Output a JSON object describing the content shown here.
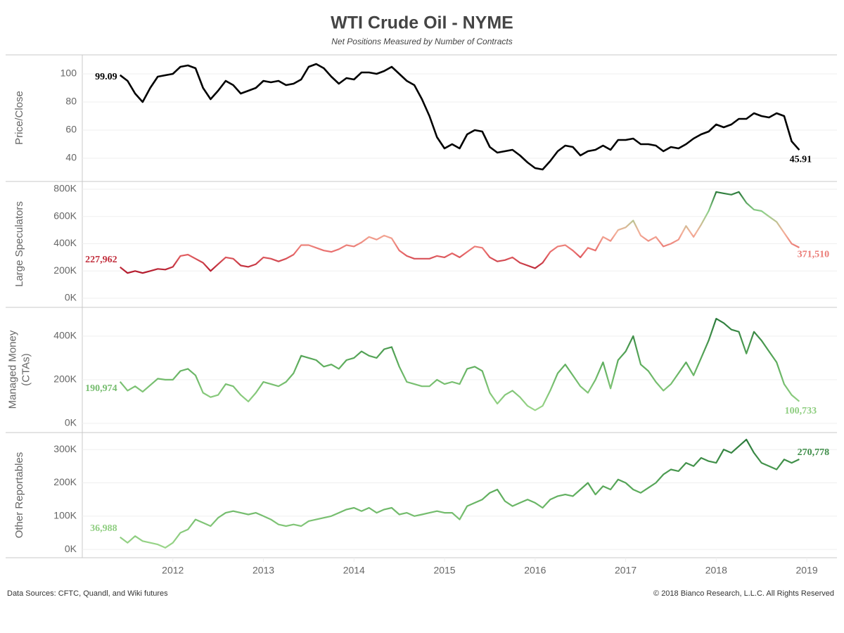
{
  "title": "WTI Crude Oil - NYME",
  "subtitle": "Net Positions Measured by Number of Contracts",
  "sources": "Data Sources: CFTC, Quandl, and Wiki futures",
  "copyright": "© 2018 Bianco Research, L.L.C. All Rights Reserved",
  "grid": true,
  "xlim": [
    "2011-01",
    "2019-05"
  ],
  "xticks": [
    2012,
    2013,
    2014,
    2015,
    2016,
    2017,
    2018,
    2019
  ],
  "x": [
    "2011-06",
    "2011-07",
    "2011-08",
    "2011-09",
    "2011-10",
    "2011-11",
    "2011-12",
    "2012-01",
    "2012-02",
    "2012-03",
    "2012-04",
    "2012-05",
    "2012-06",
    "2012-07",
    "2012-08",
    "2012-09",
    "2012-10",
    "2012-11",
    "2012-12",
    "2013-01",
    "2013-02",
    "2013-03",
    "2013-04",
    "2013-05",
    "2013-06",
    "2013-07",
    "2013-08",
    "2013-09",
    "2013-10",
    "2013-11",
    "2013-12",
    "2014-01",
    "2014-02",
    "2014-03",
    "2014-04",
    "2014-05",
    "2014-06",
    "2014-07",
    "2014-08",
    "2014-09",
    "2014-10",
    "2014-11",
    "2014-12",
    "2015-01",
    "2015-02",
    "2015-03",
    "2015-04",
    "2015-05",
    "2015-06",
    "2015-07",
    "2015-08",
    "2015-09",
    "2015-10",
    "2015-11",
    "2015-12",
    "2016-01",
    "2016-02",
    "2016-03",
    "2016-04",
    "2016-05",
    "2016-06",
    "2016-07",
    "2016-08",
    "2016-09",
    "2016-10",
    "2016-11",
    "2016-12",
    "2017-01",
    "2017-02",
    "2017-03",
    "2017-04",
    "2017-05",
    "2017-06",
    "2017-07",
    "2017-08",
    "2017-09",
    "2017-10",
    "2017-11",
    "2017-12",
    "2018-01",
    "2018-02",
    "2018-03",
    "2018-04",
    "2018-05",
    "2018-06",
    "2018-07",
    "2018-08",
    "2018-09",
    "2018-10",
    "2018-11",
    "2018-12"
  ],
  "chart_data": [
    {
      "type": "line",
      "ylabel": "Price/Close",
      "colors": [
        "#000000"
      ],
      "ylim": [
        24,
        113.5
      ],
      "yticks": [
        40,
        60,
        80,
        100
      ],
      "values": [
        99.09,
        95,
        86,
        80,
        90,
        98,
        99,
        100,
        105,
        106,
        104,
        90,
        82,
        88,
        95,
        92,
        86,
        88,
        90,
        95,
        94,
        95,
        92,
        93,
        96,
        105,
        107,
        104,
        98,
        93,
        97,
        96,
        101,
        101,
        100,
        102,
        105,
        100,
        95,
        92,
        82,
        70,
        55,
        47,
        50,
        47,
        57,
        60,
        59,
        48,
        44,
        45,
        46,
        42,
        37,
        33,
        32,
        38,
        45,
        49,
        48,
        42,
        45,
        46,
        49,
        46,
        53,
        53,
        54,
        50,
        50,
        49,
        45,
        48,
        47,
        50,
        54,
        57,
        59,
        64,
        62,
        64,
        68,
        68,
        72,
        70,
        69,
        72,
        70,
        52,
        45.91
      ],
      "value_labels": [
        "99.09",
        null,
        null,
        null,
        null,
        null,
        null,
        null,
        null,
        null,
        null,
        null,
        null,
        null,
        null,
        null,
        null,
        null,
        null,
        null,
        null,
        null,
        null,
        null,
        null,
        null,
        null,
        null,
        null,
        null,
        null,
        null,
        null,
        null,
        null,
        null,
        null,
        null,
        null,
        null,
        null,
        null,
        null,
        null,
        null,
        null,
        null,
        null,
        null,
        null,
        null,
        null,
        null,
        null,
        null,
        null,
        null,
        null,
        null,
        null,
        null,
        null,
        null,
        null,
        null,
        null,
        null,
        null,
        null,
        null,
        null,
        null,
        null,
        null,
        null,
        null,
        null,
        null,
        null,
        null,
        null,
        null,
        null,
        null,
        null,
        null,
        null,
        null,
        null,
        null,
        "45.91"
      ]
    },
    {
      "type": "line",
      "ylabel": "Large Speculators",
      "colors": [
        "#b2182b",
        "#e8696a",
        "#f4b09a",
        "#8fd18a",
        "#2b7a3b"
      ],
      "ylim": [
        -62000,
        857000
      ],
      "yticks": [
        {
          "value": 0,
          "label": "0K"
        },
        {
          "value": 200000,
          "label": "200K"
        },
        {
          "value": 400000,
          "label": "400K"
        },
        {
          "value": 600000,
          "label": "600K"
        },
        {
          "value": 800000,
          "label": "800K"
        }
      ],
      "values": [
        227962,
        185000,
        200000,
        185000,
        200000,
        215000,
        210000,
        230000,
        310000,
        320000,
        290000,
        260000,
        200000,
        250000,
        300000,
        290000,
        240000,
        230000,
        250000,
        300000,
        290000,
        270000,
        290000,
        320000,
        390000,
        390000,
        370000,
        350000,
        340000,
        360000,
        390000,
        380000,
        410000,
        450000,
        430000,
        460000,
        440000,
        350000,
        310000,
        290000,
        290000,
        290000,
        310000,
        300000,
        330000,
        300000,
        340000,
        380000,
        370000,
        300000,
        270000,
        280000,
        300000,
        260000,
        240000,
        220000,
        260000,
        340000,
        380000,
        390000,
        350000,
        300000,
        370000,
        350000,
        450000,
        420000,
        500000,
        520000,
        570000,
        460000,
        420000,
        450000,
        380000,
        400000,
        430000,
        530000,
        450000,
        540000,
        640000,
        780000,
        770000,
        760000,
        780000,
        700000,
        650000,
        640000,
        600000,
        560000,
        480000,
        400000,
        371510
      ],
      "value_labels": [
        "227,962",
        null,
        null,
        null,
        null,
        null,
        null,
        null,
        null,
        null,
        null,
        null,
        null,
        null,
        null,
        null,
        null,
        null,
        null,
        null,
        null,
        null,
        null,
        null,
        null,
        null,
        null,
        null,
        null,
        null,
        null,
        null,
        null,
        null,
        null,
        null,
        null,
        null,
        null,
        null,
        null,
        null,
        null,
        null,
        null,
        null,
        null,
        null,
        null,
        null,
        null,
        null,
        null,
        null,
        null,
        null,
        null,
        null,
        null,
        null,
        null,
        null,
        null,
        null,
        null,
        null,
        null,
        null,
        null,
        null,
        null,
        null,
        null,
        null,
        null,
        null,
        null,
        null,
        null,
        null,
        null,
        null,
        null,
        null,
        null,
        null,
        null,
        null,
        null,
        null,
        "371,510"
      ]
    },
    {
      "type": "line",
      "ylabel": [
        "Managed Money",
        "(CTAs)"
      ],
      "colors": [
        "#9bd68a",
        "#5fae5e",
        "#2b7a3b"
      ],
      "ylim": [
        -39000,
        532000
      ],
      "yticks": [
        {
          "value": 0,
          "label": "0K"
        },
        {
          "value": 200000,
          "label": "200K"
        },
        {
          "value": 400000,
          "label": "400K"
        }
      ],
      "values": [
        190974,
        150000,
        170000,
        145000,
        175000,
        205000,
        200000,
        200000,
        240000,
        250000,
        220000,
        140000,
        120000,
        130000,
        180000,
        170000,
        130000,
        100000,
        140000,
        190000,
        180000,
        170000,
        190000,
        230000,
        310000,
        300000,
        290000,
        260000,
        270000,
        250000,
        290000,
        300000,
        330000,
        310000,
        300000,
        340000,
        350000,
        260000,
        190000,
        180000,
        170000,
        170000,
        200000,
        180000,
        190000,
        180000,
        250000,
        260000,
        240000,
        140000,
        90000,
        130000,
        150000,
        120000,
        80000,
        60000,
        80000,
        150000,
        230000,
        270000,
        220000,
        170000,
        140000,
        200000,
        280000,
        160000,
        290000,
        330000,
        400000,
        270000,
        240000,
        190000,
        150000,
        180000,
        230000,
        280000,
        220000,
        300000,
        380000,
        480000,
        460000,
        430000,
        420000,
        320000,
        420000,
        380000,
        330000,
        280000,
        180000,
        130000,
        100733
      ],
      "value_labels": [
        "190,974",
        null,
        null,
        null,
        null,
        null,
        null,
        null,
        null,
        null,
        null,
        null,
        null,
        null,
        null,
        null,
        null,
        null,
        null,
        null,
        null,
        null,
        null,
        null,
        null,
        null,
        null,
        null,
        null,
        null,
        null,
        null,
        null,
        null,
        null,
        null,
        null,
        null,
        null,
        null,
        null,
        null,
        null,
        null,
        null,
        null,
        null,
        null,
        null,
        null,
        null,
        null,
        null,
        null,
        null,
        null,
        null,
        null,
        null,
        null,
        null,
        null,
        null,
        null,
        null,
        null,
        null,
        null,
        null,
        null,
        null,
        null,
        null,
        null,
        null,
        null,
        null,
        null,
        null,
        null,
        null,
        null,
        null,
        null,
        null,
        null,
        null,
        null,
        null,
        null,
        "100,733"
      ]
    },
    {
      "type": "line",
      "ylabel": "Other Reportables",
      "colors": [
        "#9bd68a",
        "#5fae5e",
        "#2b7a3b"
      ],
      "ylim": [
        -25000,
        351000
      ],
      "yticks": [
        {
          "value": 0,
          "label": "0K"
        },
        {
          "value": 100000,
          "label": "100K"
        },
        {
          "value": 200000,
          "label": "200K"
        },
        {
          "value": 300000,
          "label": "300K"
        }
      ],
      "values": [
        36988,
        20000,
        40000,
        25000,
        20000,
        15000,
        5000,
        20000,
        50000,
        60000,
        90000,
        80000,
        70000,
        95000,
        110000,
        115000,
        110000,
        105000,
        110000,
        100000,
        90000,
        75000,
        70000,
        75000,
        70000,
        85000,
        90000,
        95000,
        100000,
        110000,
        120000,
        125000,
        115000,
        125000,
        110000,
        120000,
        125000,
        105000,
        110000,
        100000,
        105000,
        110000,
        115000,
        110000,
        110000,
        90000,
        130000,
        140000,
        150000,
        170000,
        180000,
        145000,
        130000,
        140000,
        150000,
        140000,
        125000,
        150000,
        160000,
        165000,
        160000,
        180000,
        200000,
        165000,
        190000,
        180000,
        210000,
        200000,
        180000,
        170000,
        185000,
        200000,
        225000,
        240000,
        235000,
        260000,
        250000,
        275000,
        265000,
        260000,
        300000,
        290000,
        310000,
        330000,
        290000,
        260000,
        250000,
        240000,
        270000,
        260000,
        270778
      ],
      "value_labels": [
        "36,988",
        null,
        null,
        null,
        null,
        null,
        null,
        null,
        null,
        null,
        null,
        null,
        null,
        null,
        null,
        null,
        null,
        null,
        null,
        null,
        null,
        null,
        null,
        null,
        null,
        null,
        null,
        null,
        null,
        null,
        null,
        null,
        null,
        null,
        null,
        null,
        null,
        null,
        null,
        null,
        null,
        null,
        null,
        null,
        null,
        null,
        null,
        null,
        null,
        null,
        null,
        null,
        null,
        null,
        null,
        null,
        null,
        null,
        null,
        null,
        null,
        null,
        null,
        null,
        null,
        null,
        null,
        null,
        null,
        null,
        null,
        null,
        null,
        null,
        null,
        null,
        null,
        null,
        null,
        null,
        null,
        null,
        null,
        null,
        null,
        null,
        null,
        null,
        null,
        null,
        "270,778"
      ]
    }
  ]
}
